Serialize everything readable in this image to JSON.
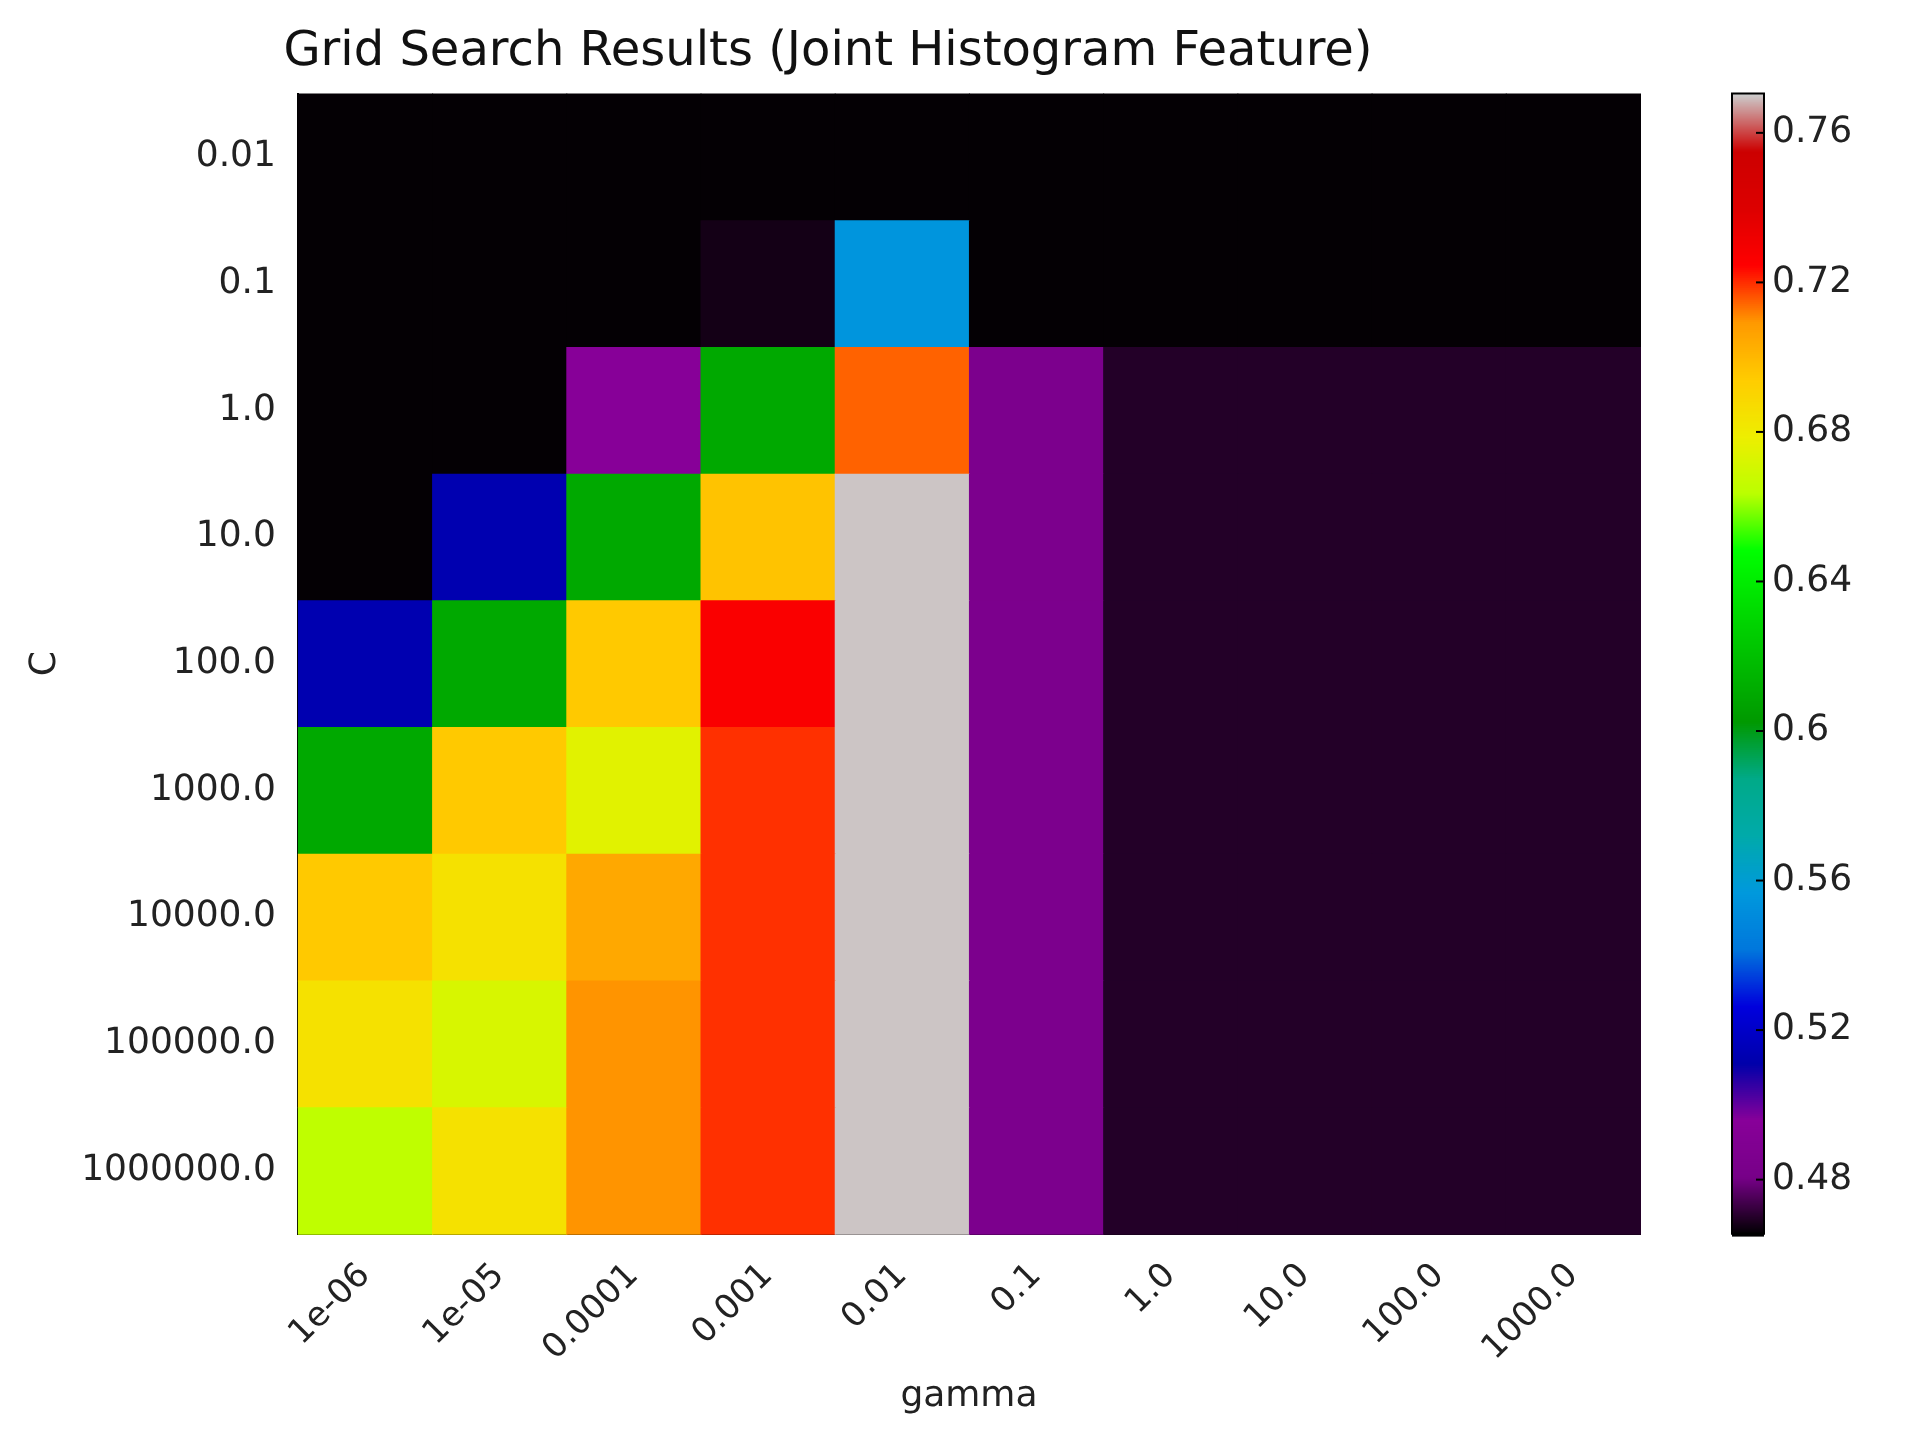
{
  "chart_data": {
    "type": "heatmap",
    "title": "Grid Search Results (Joint Histogram Feature)",
    "xlabel": "gamma",
    "ylabel": "C",
    "categories": [
      "1e-06",
      "1e-05",
      "0.0001",
      "0.001",
      "0.01",
      "0.1",
      "1.0",
      "10.0",
      "100.0",
      "1000.0"
    ],
    "y_categories": [
      "0.01",
      "0.1",
      "1.0",
      "10.0",
      "100.0",
      "1000.0",
      "10000.0",
      "100000.0",
      "1000000.0"
    ],
    "cells": [
      [
        0.466,
        0.466,
        0.466,
        0.466,
        0.466,
        0.466,
        0.466,
        0.466,
        0.466,
        0.466
      ],
      [
        0.466,
        0.466,
        0.466,
        0.468,
        0.555,
        0.466,
        0.466,
        0.466,
        0.466,
        0.466
      ],
      [
        0.466,
        0.466,
        0.495,
        0.61,
        0.715,
        0.485,
        0.47,
        0.47,
        0.47,
        0.47
      ],
      [
        0.466,
        0.513,
        0.61,
        0.697,
        0.77,
        0.485,
        0.47,
        0.47,
        0.47,
        0.47
      ],
      [
        0.513,
        0.61,
        0.695,
        0.727,
        0.77,
        0.485,
        0.47,
        0.47,
        0.47,
        0.47
      ],
      [
        0.61,
        0.695,
        0.675,
        0.72,
        0.77,
        0.485,
        0.47,
        0.47,
        0.47,
        0.47
      ],
      [
        0.695,
        0.685,
        0.705,
        0.72,
        0.77,
        0.485,
        0.47,
        0.47,
        0.47,
        0.47
      ],
      [
        0.685,
        0.672,
        0.71,
        0.72,
        0.77,
        0.485,
        0.47,
        0.47,
        0.47,
        0.47
      ],
      [
        0.665,
        0.685,
        0.71,
        0.72,
        0.77,
        0.485,
        0.47,
        0.47,
        0.47,
        0.47
      ]
    ],
    "clim": [
      0.4655,
      0.7705
    ],
    "cticks": [
      0.48,
      0.52,
      0.56,
      0.6,
      0.64,
      0.68,
      0.72,
      0.76
    ]
  }
}
